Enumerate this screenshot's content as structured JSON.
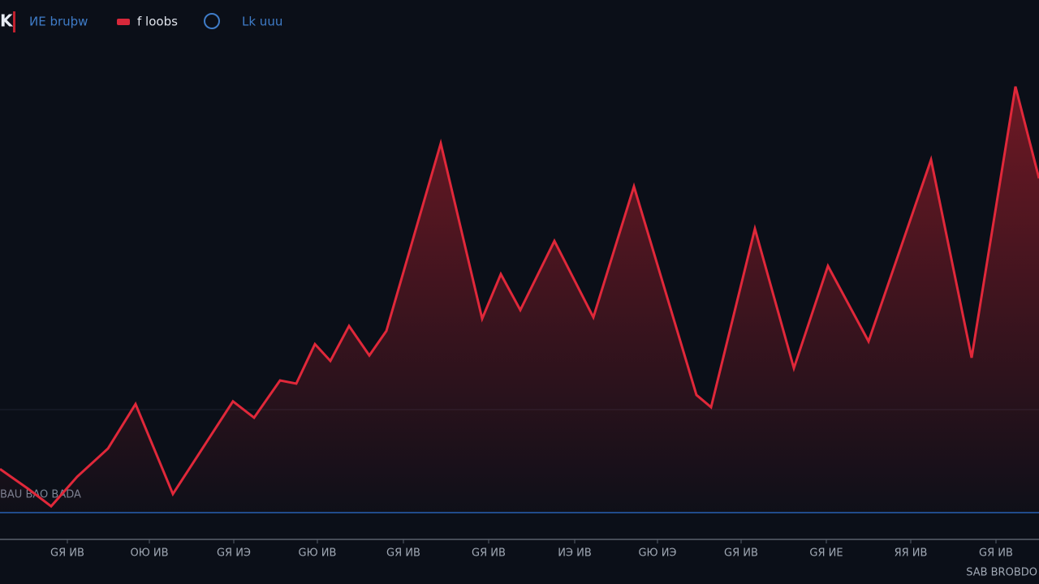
{
  "header": {
    "logo": "K",
    "tab1": "ИЕ bruþw",
    "tab2": "f loobs",
    "tab3": "Lk uuu"
  },
  "chart_data": {
    "type": "area",
    "color": "#e0283a",
    "x": [
      0,
      35,
      63,
      95,
      133,
      167,
      213,
      287,
      313,
      345,
      365,
      388,
      407,
      430,
      455,
      476,
      543,
      594,
      617,
      641,
      683,
      731,
      781,
      858,
      876,
      930,
      978,
      1020,
      1070,
      1147,
      1197,
      1251,
      1280
    ],
    "values": [
      9.6,
      5.2,
      1.4,
      7.9,
      14.1,
      23.9,
      4.1,
      24.5,
      20.9,
      29.1,
      28.4,
      37.1,
      33.4,
      41.1,
      34.6,
      40,
      81.3,
      42.7,
      52.5,
      44.6,
      59.8,
      43,
      71.8,
      25.9,
      23.2,
      62.5,
      31.8,
      54.3,
      37.7,
      77.7,
      34.1,
      93.8,
      73.6
    ],
    "xlim": [
      0,
      1280
    ],
    "ylim": [
      0,
      100
    ],
    "xticks": [
      {
        "value": 83,
        "label": "GЯ ИВ"
      },
      {
        "value": 184,
        "label": "ОЮ ИВ"
      },
      {
        "value": 288,
        "label": "GЯ ИЭ"
      },
      {
        "value": 391,
        "label": "GЮ ИВ"
      },
      {
        "value": 497,
        "label": "GЯ ИВ"
      },
      {
        "value": 602,
        "label": "GЯ ИВ"
      },
      {
        "value": 708,
        "label": "ИЭ ИВ"
      },
      {
        "value": 810,
        "label": "GЮ ИЭ"
      },
      {
        "value": 913,
        "label": "GЯ ИВ"
      },
      {
        "value": 1018,
        "label": "GЯ ИЕ"
      },
      {
        "value": 1122,
        "label": "ЯЯ ИВ"
      },
      {
        "value": 1227,
        "label": "GЯ ИВ"
      }
    ],
    "annotations": [
      "BAU BAO BADA",
      "SAB BROBDO"
    ]
  }
}
